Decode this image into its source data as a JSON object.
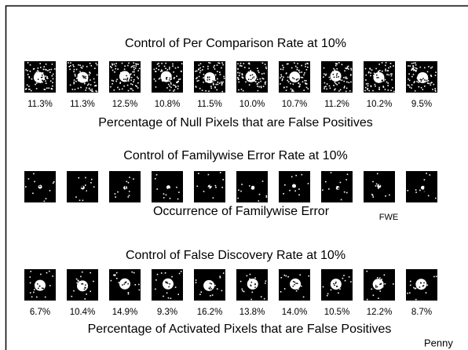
{
  "sections": [
    {
      "title": "Control of Per Comparison Rate at 10%",
      "labels": [
        "11.3%",
        "11.3%",
        "12.5%",
        "10.8%",
        "11.5%",
        "10.0%",
        "10.7%",
        "11.2%",
        "10.2%",
        "9.5%"
      ],
      "caption": "Percentage of Null Pixels that are False Positives"
    },
    {
      "title": "Control of Familywise Error Rate at 10%",
      "caption": "Occurrence of Familywise Error",
      "note": "FWE"
    },
    {
      "title": "Control of False Discovery Rate at 10%",
      "labels": [
        "6.7%",
        "10.4%",
        "14.9%",
        "9.3%",
        "16.2%",
        "13.8%",
        "14.0%",
        "10.5%",
        "12.2%",
        "8.7%"
      ],
      "caption": "Percentage of Activated Pixels that are False Positives"
    }
  ],
  "footer": "Penny"
}
